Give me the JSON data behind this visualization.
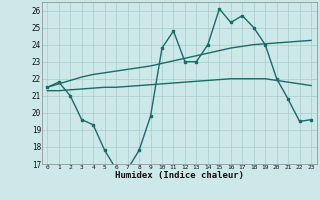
{
  "x": [
    0,
    1,
    2,
    3,
    4,
    5,
    6,
    7,
    8,
    9,
    10,
    11,
    12,
    13,
    14,
    15,
    16,
    17,
    18,
    19,
    20,
    21,
    22,
    23
  ],
  "y_main": [
    21.5,
    21.8,
    21.0,
    19.6,
    19.3,
    17.8,
    16.7,
    16.7,
    17.8,
    19.8,
    23.8,
    24.8,
    23.0,
    23.0,
    24.0,
    26.1,
    25.3,
    25.7,
    25.0,
    24.0,
    22.0,
    20.8,
    19.5,
    19.6
  ],
  "y_upper": [
    21.5,
    21.7,
    21.9,
    22.1,
    22.25,
    22.35,
    22.45,
    22.55,
    22.65,
    22.75,
    22.9,
    23.05,
    23.2,
    23.35,
    23.5,
    23.65,
    23.8,
    23.9,
    24.0,
    24.05,
    24.1,
    24.15,
    24.2,
    24.25
  ],
  "y_lower": [
    21.3,
    21.3,
    21.35,
    21.4,
    21.45,
    21.5,
    21.5,
    21.55,
    21.6,
    21.65,
    21.7,
    21.75,
    21.8,
    21.85,
    21.9,
    21.95,
    22.0,
    22.0,
    22.0,
    22.0,
    21.9,
    21.8,
    21.7,
    21.6
  ],
  "color": "#1a6b6b",
  "bg_color": "#cce8e8",
  "grid_color": "#aacccc",
  "xlabel": "Humidex (Indice chaleur)",
  "xlim": [
    -0.5,
    23.5
  ],
  "ylim": [
    17,
    26.5
  ],
  "yticks": [
    17,
    18,
    19,
    20,
    21,
    22,
    23,
    24,
    25,
    26
  ],
  "xticks": [
    0,
    1,
    2,
    3,
    4,
    5,
    6,
    7,
    8,
    9,
    10,
    11,
    12,
    13,
    14,
    15,
    16,
    17,
    18,
    19,
    20,
    21,
    22,
    23
  ],
  "marker": "s",
  "markersize": 2.0,
  "linewidth": 1.0
}
